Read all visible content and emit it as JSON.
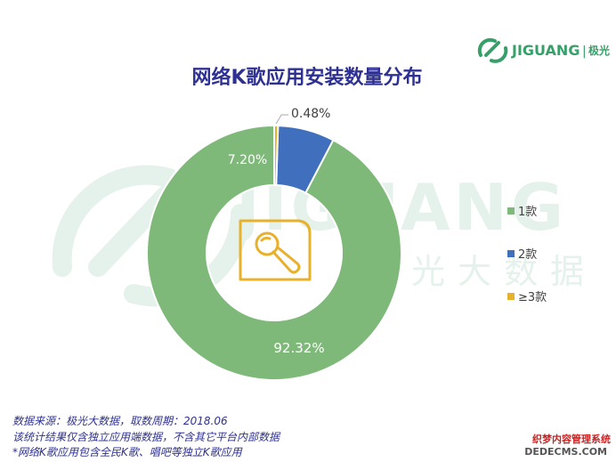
{
  "brand": {
    "name": "JIGUANG",
    "divider": "|",
    "cn_name": "极光",
    "color": "#37a06a"
  },
  "watermark": {
    "name": "JIGUANG",
    "cn_name": "极光大数据"
  },
  "colors": {
    "title": "#2e3192",
    "one_app": "#7fb97a",
    "two_apps": "#3f6fbd",
    "three_plus": "#e8b12c",
    "center_icon": "#e8b12c"
  },
  "chart_data": {
    "type": "pie",
    "variant": "donut",
    "title": "网络K歌应用安装数量分布",
    "series": [
      {
        "name": "1款",
        "value": 92.32,
        "label": "92.32%",
        "color": "#7fb97a"
      },
      {
        "name": "2款",
        "value": 7.2,
        "label": "7.20%",
        "color": "#3f6fbd"
      },
      {
        "name": "≥3款",
        "value": 0.48,
        "label": "0.48%",
        "color": "#e8b12c"
      }
    ],
    "legend_position": "right",
    "center_icon": "microphone-icon"
  },
  "footnotes": {
    "source": "数据来源：极光大数据，取数周期：2018.06",
    "note1": "该统计结果仅含独立应用端数据，不含其它平台内部数据",
    "note2": "*网络K歌应用包含全民K歌、唱吧等独立K歌应用"
  },
  "credit": {
    "line1": "织梦内容管理系统",
    "line2": "DEDECMS.COM"
  }
}
